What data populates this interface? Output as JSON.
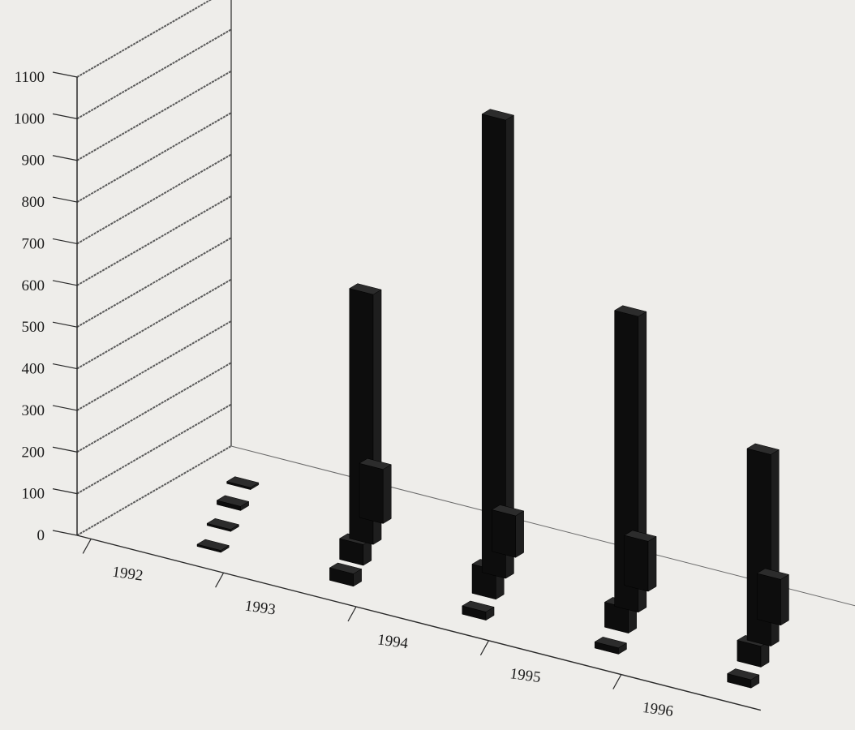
{
  "chart_data": {
    "type": "bar",
    "style": "3d-grouped-columns",
    "title": "",
    "xlabel": "",
    "ylabel": "",
    "ylim": [
      0,
      1100
    ],
    "yticks": [
      0,
      100,
      200,
      300,
      400,
      500,
      600,
      700,
      800,
      900,
      1000,
      1100
    ],
    "categories": [
      "1992",
      "1993",
      "1994",
      "1995",
      "1996"
    ],
    "series": [
      {
        "values": [
          5,
          130,
          100,
          120,
          110
        ]
      },
      {
        "values": [
          10,
          600,
          1100,
          710,
          460
        ]
      },
      {
        "values": [
          5,
          50,
          70,
          60,
          50
        ]
      },
      {
        "values": [
          5,
          30,
          20,
          15,
          20
        ]
      }
    ],
    "grid": false,
    "legend": "none",
    "colors": {
      "bar": "#0d0d0d",
      "bar_side": "#1e1e1e",
      "axis": "#2a2a2a",
      "background": "#eeedea"
    }
  }
}
